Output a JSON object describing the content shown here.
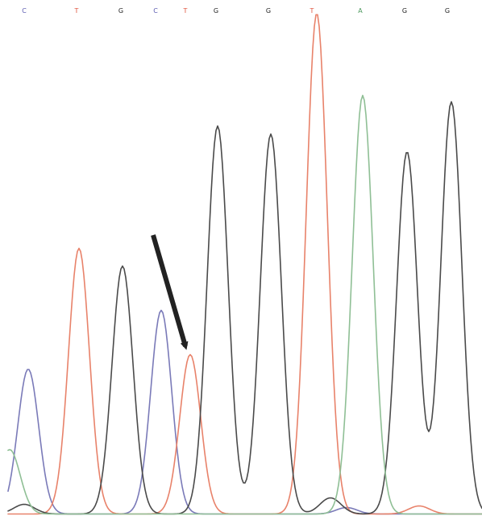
{
  "chart_data": {
    "type": "line",
    "base_calls": [
      {
        "base": "C",
        "position": 30
      },
      {
        "base": "T",
        "position": 95
      },
      {
        "base": "G",
        "position": 150
      },
      {
        "base": "C",
        "position": 193
      },
      {
        "base": "T",
        "position": 230
      },
      {
        "base": "G",
        "position": 268
      },
      {
        "base": "G",
        "position": 333
      },
      {
        "base": "T",
        "position": 387
      },
      {
        "base": "A",
        "position": 447
      },
      {
        "base": "G",
        "position": 502
      },
      {
        "base": "G",
        "position": 555
      }
    ],
    "base_colors": {
      "A": "#4e9a5f",
      "C": "#5a5ab0",
      "G": "#222222",
      "T": "#e0553f"
    },
    "series": [
      {
        "base": "C",
        "color": "#7a7ab8",
        "peaks": [
          {
            "position": 35,
            "height": 180
          },
          {
            "position": 200,
            "height": 253
          },
          {
            "position": 430,
            "height": 8
          }
        ]
      },
      {
        "base": "T",
        "color": "#e8826a",
        "peaks": [
          {
            "position": 98,
            "height": 330
          },
          {
            "position": 236,
            "height": 198
          },
          {
            "position": 393,
            "height": 622
          },
          {
            "position": 520,
            "height": 10
          }
        ]
      },
      {
        "base": "G",
        "color": "#4a4a4a",
        "peaks": [
          {
            "position": 30,
            "height": 12
          },
          {
            "position": 152,
            "height": 308
          },
          {
            "position": 270,
            "height": 482
          },
          {
            "position": 336,
            "height": 472
          },
          {
            "position": 410,
            "height": 20
          },
          {
            "position": 505,
            "height": 450
          },
          {
            "position": 560,
            "height": 512
          }
        ]
      },
      {
        "base": "A",
        "color": "#8fbf95",
        "peaks": [
          {
            "position": 12,
            "height": 80
          },
          {
            "position": 450,
            "height": 520
          }
        ]
      }
    ],
    "annotation": {
      "type": "arrow",
      "points_to": {
        "base": "T",
        "position": 236
      }
    },
    "grid": false
  }
}
